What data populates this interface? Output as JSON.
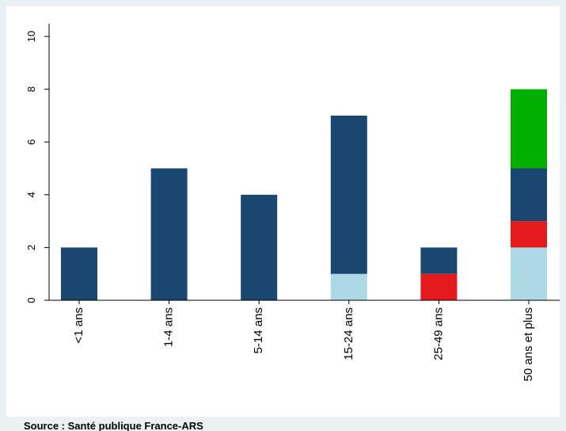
{
  "chart_data": {
    "type": "stacked_bar",
    "categories": [
      "<1 ans",
      "1-4 ans",
      "5-14 ans",
      "15-24 ans",
      "25-49 ans",
      "50 ans et plus"
    ],
    "series": [
      {
        "color": "#add8e6",
        "values": [
          0,
          0,
          0,
          1,
          0,
          2
        ]
      },
      {
        "color": "#e41a1c",
        "values": [
          0,
          0,
          0,
          0,
          1,
          1
        ]
      },
      {
        "color": "#1a476f",
        "values": [
          2,
          5,
          4,
          6,
          1,
          2
        ]
      },
      {
        "color": "#00b000",
        "values": [
          0,
          0,
          0,
          0,
          0,
          3
        ]
      }
    ],
    "ylim": [
      0,
      10
    ],
    "yticks": [
      0,
      2,
      4,
      6,
      8,
      10
    ],
    "grid": false,
    "source": "Source : Santé publique France-ARS"
  }
}
